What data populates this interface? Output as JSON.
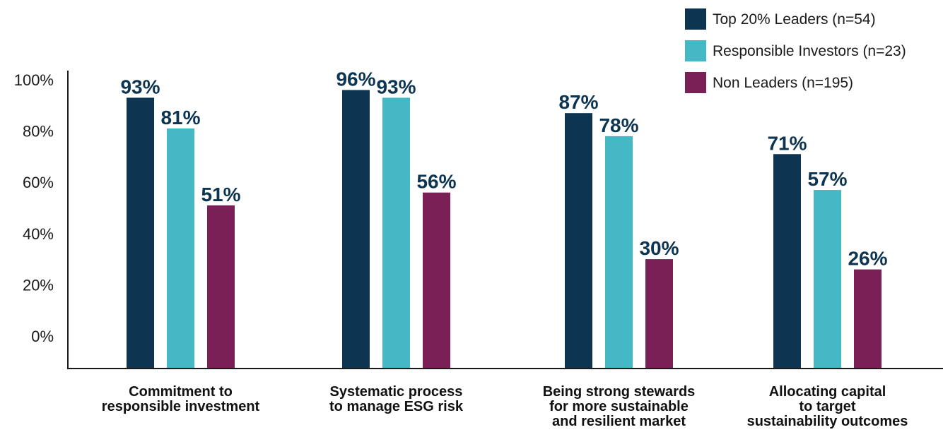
{
  "chart_data": {
    "type": "bar",
    "title": "",
    "xlabel": "",
    "ylabel": "",
    "ylim": [
      0,
      100
    ],
    "y_ticks": [
      "0%",
      "20%",
      "40%",
      "60%",
      "80%",
      "100%"
    ],
    "legend_position": "top-right",
    "grid": false,
    "categories": [
      [
        "Commitment to",
        "responsible investment"
      ],
      [
        "Systematic process",
        "to manage ESG risk"
      ],
      [
        "Being strong stewards",
        "for more sustainable",
        "and resilient market"
      ],
      [
        "Allocating capital",
        "to target",
        "sustainability outcomes"
      ]
    ],
    "series": [
      {
        "name": "Top 20% Leaders (n=54)",
        "color": "#0d3450",
        "values": [
          93,
          96,
          87,
          71
        ]
      },
      {
        "name": "Responsible Investors (n=23)",
        "color": "#45b8c6",
        "values": [
          81,
          93,
          78,
          57
        ]
      },
      {
        "name": "Non Leaders (n=195)",
        "color": "#7b1f57",
        "values": [
          51,
          56,
          30,
          26
        ]
      }
    ]
  }
}
